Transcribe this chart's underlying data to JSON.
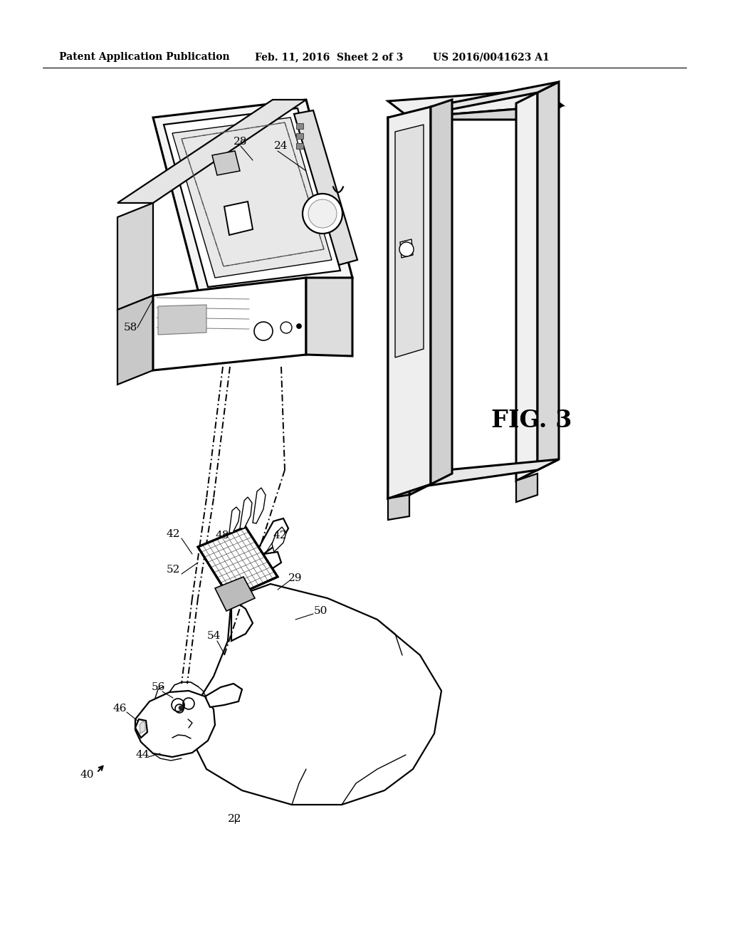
{
  "title_left": "Patent Application Publication",
  "title_mid": "Feb. 11, 2016  Sheet 2 of 3",
  "title_right": "US 2016/0041623 A1",
  "fig_label": "FIG. 3",
  "bg_color": "#ffffff",
  "line_color": "#000000"
}
